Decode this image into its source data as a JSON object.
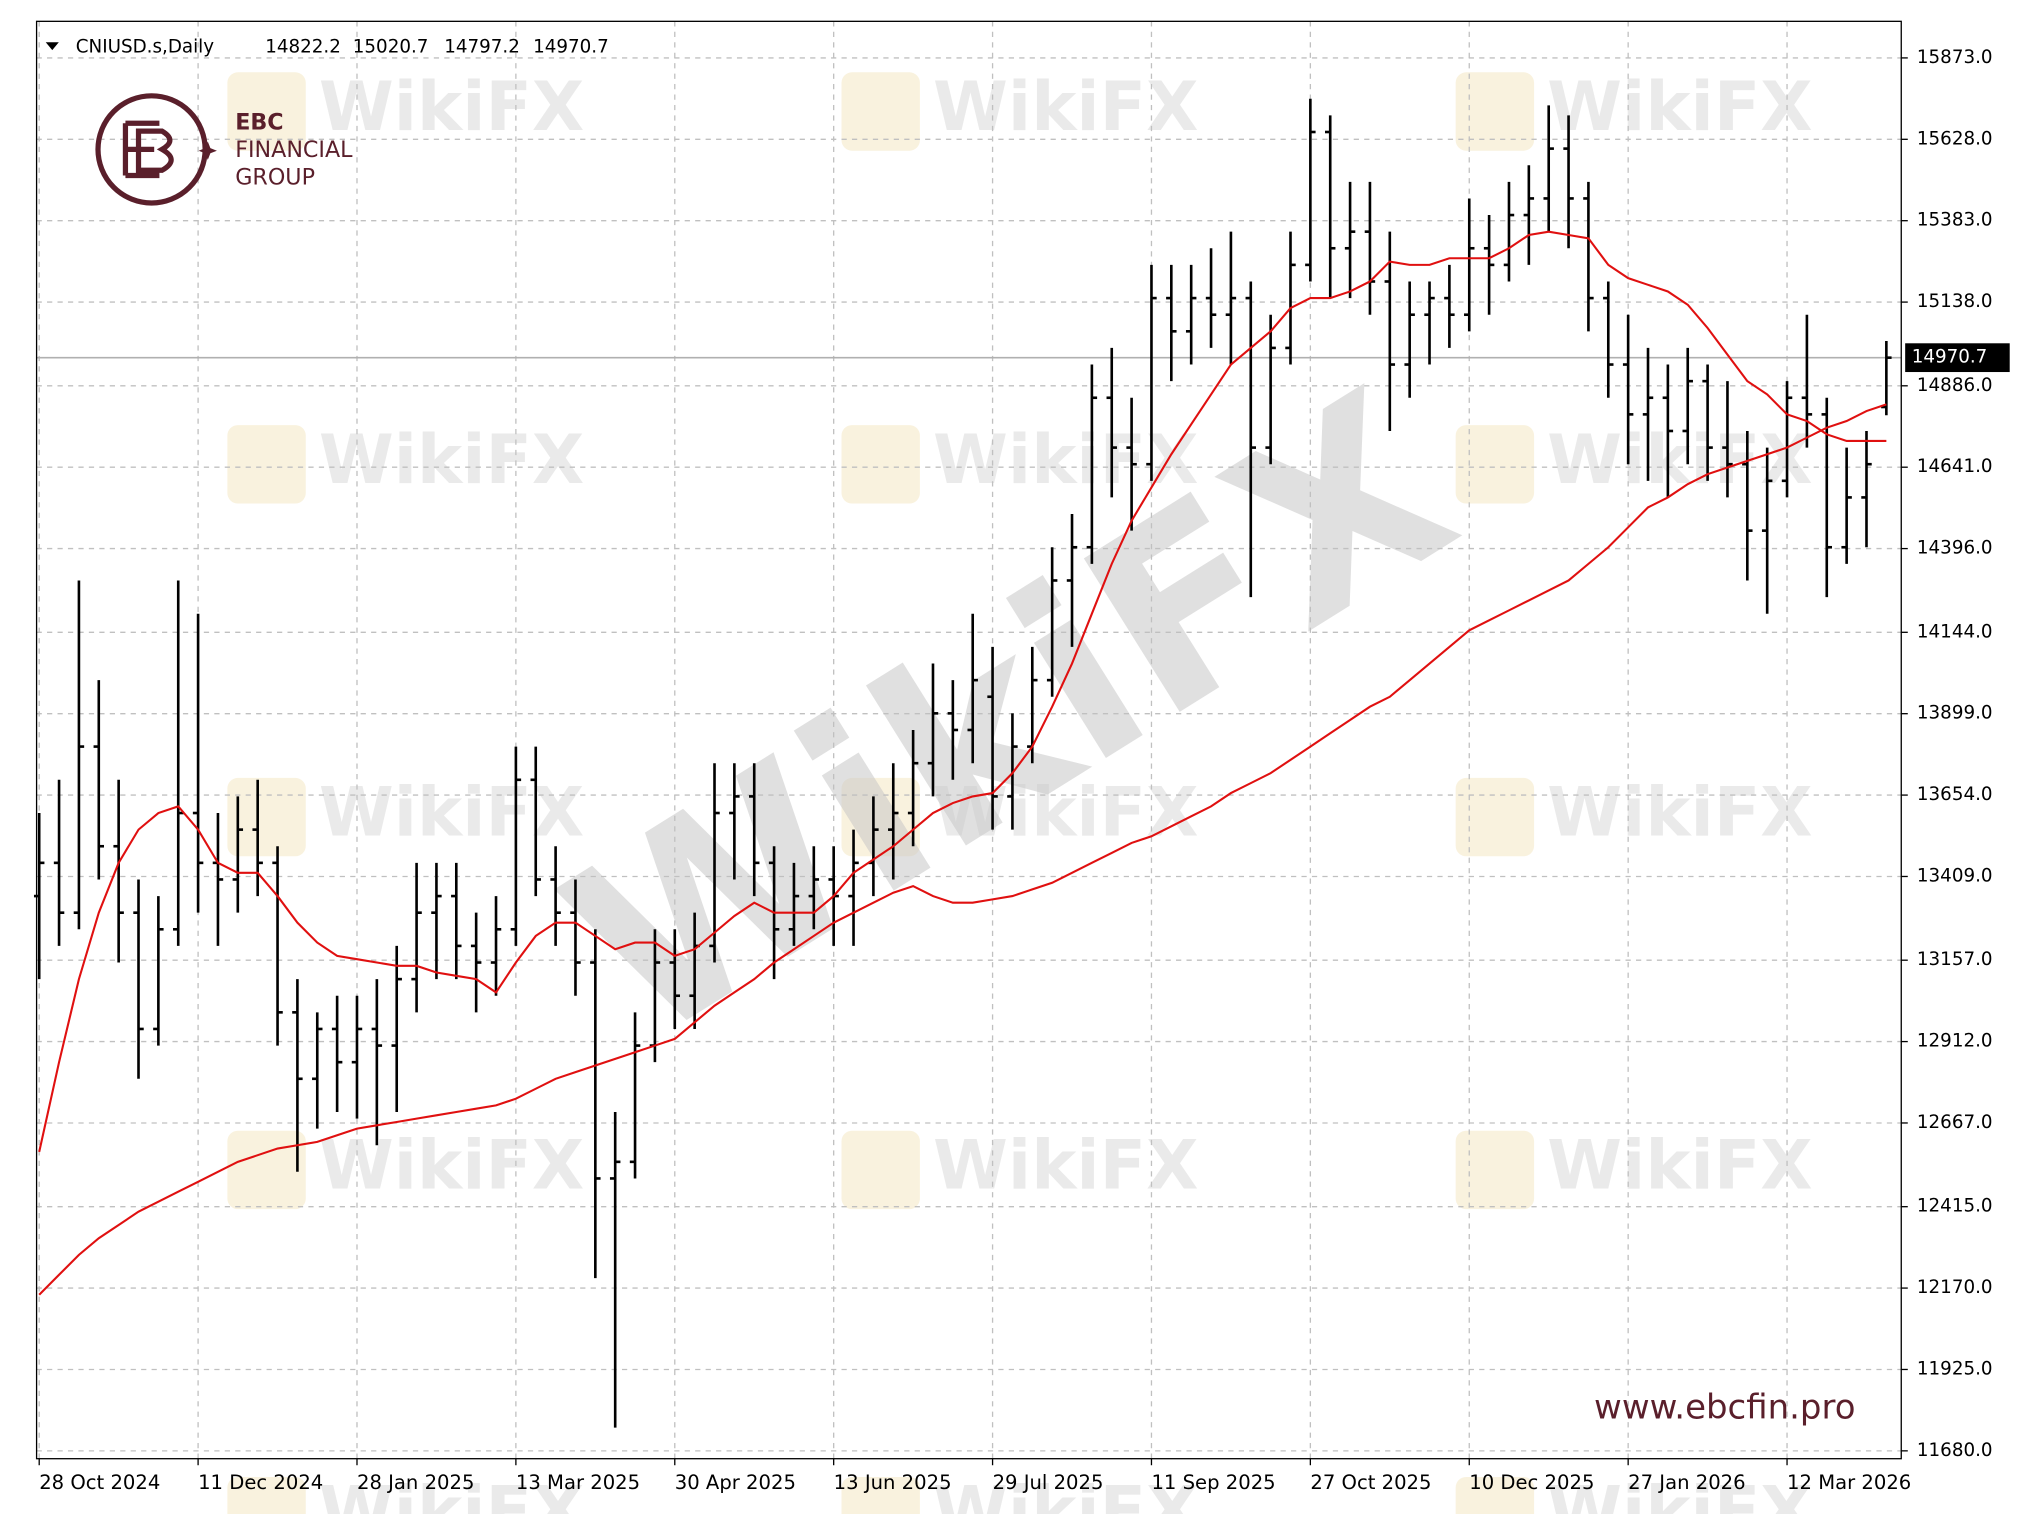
{
  "chart_data": {
    "type": "ohlc",
    "title": "CNIUSD.s,Daily",
    "color": "#000000",
    "grid": true,
    "categories": [
      "28 Oct 2024",
      null,
      null,
      null,
      null,
      null,
      null,
      null,
      "11 Dec 2024",
      null,
      null,
      null,
      null,
      null,
      null,
      null,
      "28 Jan 2025",
      null,
      null,
      null,
      null,
      null,
      null,
      null,
      "13 Mar 2025",
      null,
      null,
      null,
      null,
      null,
      null,
      null,
      "30 Apr 2025",
      null,
      null,
      null,
      null,
      null,
      null,
      null,
      "13 Jun 2025",
      null,
      null,
      null,
      null,
      null,
      null,
      null,
      "29 Jul 2025",
      null,
      null,
      null,
      null,
      null,
      null,
      null,
      "11 Sep 2025",
      null,
      null,
      null,
      null,
      null,
      null,
      null,
      "27 Oct 2025",
      null,
      null,
      null,
      null,
      null,
      null,
      null,
      "10 Dec 2025",
      null,
      null,
      null,
      null,
      null,
      null,
      null,
      "27 Jan 2026",
      null,
      null,
      null,
      null,
      null,
      null,
      null,
      "12 Mar 2026",
      null,
      null,
      null,
      null,
      null
    ],
    "open": [
      13350,
      13450,
      13300,
      13800,
      13500,
      13300,
      12950,
      13250,
      13600,
      13450,
      13400,
      13550,
      13450,
      13000,
      12800,
      12950,
      12850,
      12950,
      12900,
      13100,
      13300,
      13350,
      13200,
      13150,
      13250,
      13700,
      13400,
      13300,
      13150,
      12500,
      12550,
      12900,
      13150,
      13050,
      13200,
      13600,
      13650,
      13450,
      13250,
      13350,
      13400,
      13350,
      13450,
      13550,
      13600,
      13750,
      13900,
      13850,
      13950,
      13650,
      13800,
      14000,
      14300,
      14400,
      14850,
      14700,
      14650,
      15150,
      15050,
      15150,
      15100,
      15150,
      14700,
      15000,
      15250,
      15650,
      15300,
      15350,
      15200,
      14950,
      15100,
      15150,
      15100,
      15300,
      15250,
      15400,
      15450,
      15600,
      15450,
      15150,
      14950,
      14800,
      14850,
      14750,
      14900,
      14700,
      14650,
      14450,
      14600,
      14850,
      14800,
      14400,
      14550,
      14822.2
    ],
    "high": [
      13600,
      13700,
      14300,
      14000,
      13700,
      13400,
      13350,
      14300,
      14200,
      13600,
      13650,
      13700,
      13500,
      13100,
      13000,
      13050,
      13050,
      13100,
      13200,
      13450,
      13450,
      13450,
      13300,
      13350,
      13800,
      13800,
      13500,
      13400,
      13250,
      12700,
      13000,
      13250,
      13250,
      13300,
      13750,
      13750,
      13750,
      13500,
      13450,
      13500,
      13500,
      13550,
      13650,
      13750,
      13850,
      14050,
      14000,
      14200,
      14100,
      13900,
      14100,
      14400,
      14500,
      14950,
      15000,
      14850,
      15250,
      15250,
      15250,
      15300,
      15350,
      15200,
      15100,
      15350,
      15750,
      15700,
      15500,
      15500,
      15350,
      15200,
      15200,
      15250,
      15450,
      15400,
      15500,
      15550,
      15730,
      15700,
      15500,
      15200,
      15100,
      15000,
      14950,
      15000,
      14950,
      14900,
      14750,
      14700,
      14900,
      15100,
      14850,
      14700,
      14750,
      15020.7
    ],
    "low": [
      13100,
      13200,
      13250,
      13400,
      13150,
      12800,
      12900,
      13200,
      13300,
      13200,
      13300,
      13350,
      12900,
      12520,
      12650,
      12700,
      12680,
      12600,
      12700,
      13000,
      13100,
      13100,
      13000,
      13050,
      13200,
      13350,
      13200,
      13050,
      12200,
      11750,
      12500,
      12850,
      12950,
      12950,
      13150,
      13400,
      13350,
      13100,
      13200,
      13250,
      13200,
      13200,
      13350,
      13400,
      13500,
      13650,
      13700,
      13750,
      13550,
      13550,
      13750,
      13950,
      14100,
      14350,
      14550,
      14450,
      14600,
      14900,
      14950,
      15000,
      14950,
      14250,
      14650,
      14950,
      15200,
      15150,
      15150,
      15100,
      14750,
      14850,
      14950,
      15000,
      15050,
      15100,
      15200,
      15250,
      15350,
      15300,
      15050,
      14850,
      14650,
      14600,
      14550,
      14650,
      14600,
      14550,
      14300,
      14200,
      14550,
      14700,
      14250,
      14350,
      14400,
      14797.2
    ],
    "close": [
      13450,
      13300,
      13800,
      13500,
      13300,
      12950,
      13250,
      13600,
      13450,
      13400,
      13550,
      13450,
      13000,
      12800,
      12950,
      12850,
      12950,
      12900,
      13100,
      13300,
      13350,
      13200,
      13150,
      13250,
      13700,
      13400,
      13300,
      13150,
      12500,
      12550,
      12900,
      13150,
      13050,
      13200,
      13600,
      13650,
      13450,
      13250,
      13350,
      13400,
      13350,
      13450,
      13550,
      13600,
      13750,
      13900,
      13850,
      14000,
      13650,
      13800,
      14000,
      14300,
      14400,
      14850,
      14700,
      14650,
      15150,
      15050,
      15150,
      15100,
      15150,
      14700,
      15000,
      15250,
      15650,
      15300,
      15350,
      15200,
      14950,
      15100,
      15150,
      15100,
      15300,
      15250,
      15400,
      15450,
      15600,
      15450,
      15150,
      14950,
      14800,
      14850,
      14750,
      14900,
      14700,
      14650,
      14450,
      14600,
      14850,
      14800,
      14400,
      14550,
      14650,
      14970.7
    ],
    "moving_averages": [
      {
        "color": "#e01010",
        "values": [
          12580,
          12850,
          13100,
          13300,
          13450,
          13550,
          13600,
          13620,
          13550,
          13450,
          13420,
          13420,
          13350,
          13270,
          13210,
          13170,
          13160,
          13150,
          13140,
          13140,
          13120,
          13110,
          13100,
          13060,
          13150,
          13230,
          13270,
          13270,
          13230,
          13190,
          13210,
          13210,
          13170,
          13190,
          13240,
          13290,
          13330,
          13300,
          13300,
          13300,
          13350,
          13420,
          13460,
          13500,
          13550,
          13600,
          13630,
          13650,
          13660,
          13720,
          13800,
          13920,
          14050,
          14200,
          14350,
          14480,
          14580,
          14680,
          14770,
          14860,
          14950,
          15000,
          15050,
          15120,
          15150,
          15150,
          15170,
          15200,
          15260,
          15250,
          15250,
          15270,
          15270,
          15270,
          15300,
          15340,
          15350,
          15340,
          15330,
          15250,
          15210,
          15190,
          15170,
          15130,
          15060,
          14980,
          14900,
          14860,
          14800,
          14780,
          14740,
          14720,
          14720,
          14720
        ]
      },
      {
        "color": "#e01010",
        "values": [
          12150,
          12210,
          12270,
          12320,
          12360,
          12400,
          12430,
          12460,
          12490,
          12520,
          12550,
          12570,
          12590,
          12600,
          12610,
          12630,
          12650,
          12660,
          12670,
          12680,
          12690,
          12700,
          12710,
          12720,
          12740,
          12770,
          12800,
          12820,
          12840,
          12860,
          12880,
          12900,
          12920,
          12970,
          13020,
          13060,
          13100,
          13150,
          13190,
          13230,
          13270,
          13300,
          13330,
          13360,
          13380,
          13350,
          13330,
          13330,
          13340,
          13350,
          13370,
          13390,
          13420,
          13450,
          13480,
          13510,
          13530,
          13560,
          13590,
          13620,
          13660,
          13690,
          13720,
          13760,
          13800,
          13840,
          13880,
          13920,
          13950,
          14000,
          14050,
          14100,
          14150,
          14180,
          14210,
          14240,
          14270,
          14300,
          14350,
          14400,
          14460,
          14520,
          14550,
          14590,
          14620,
          14640,
          14660,
          14680,
          14700,
          14730,
          14760,
          14780,
          14810,
          14830
        ]
      }
    ],
    "ylim": [
      11680,
      15873
    ],
    "yticks": [
      {
        "value": 15873,
        "label": "15873.0"
      },
      {
        "value": 15628,
        "label": "15628.0"
      },
      {
        "value": 15383,
        "label": "15383.0"
      },
      {
        "value": 15138,
        "label": "15138.0"
      },
      {
        "value": 14886,
        "label": "14886.0"
      },
      {
        "value": 14641,
        "label": "14641.0"
      },
      {
        "value": 14396,
        "label": "14396.0"
      },
      {
        "value": 14144,
        "label": "14144.0"
      },
      {
        "value": 13899,
        "label": "13899.0"
      },
      {
        "value": 13654,
        "label": "13654.0"
      },
      {
        "value": 13409,
        "label": "13409.0"
      },
      {
        "value": 13157,
        "label": "13157.0"
      },
      {
        "value": 12912,
        "label": "12912.0"
      },
      {
        "value": 12667,
        "label": "12667.0"
      },
      {
        "value": 12415,
        "label": "12415.0"
      },
      {
        "value": 12170,
        "label": "12170.0"
      },
      {
        "value": 11925,
        "label": "11925.0"
      },
      {
        "value": 11680,
        "label": "11680.0"
      }
    ]
  },
  "logo": {
    "line1": "EBC",
    "line2": "FINANCIAL",
    "line3": "GROUP"
  },
  "website": "www.ebcfin.pro",
  "watermark": "WikiFX"
}
